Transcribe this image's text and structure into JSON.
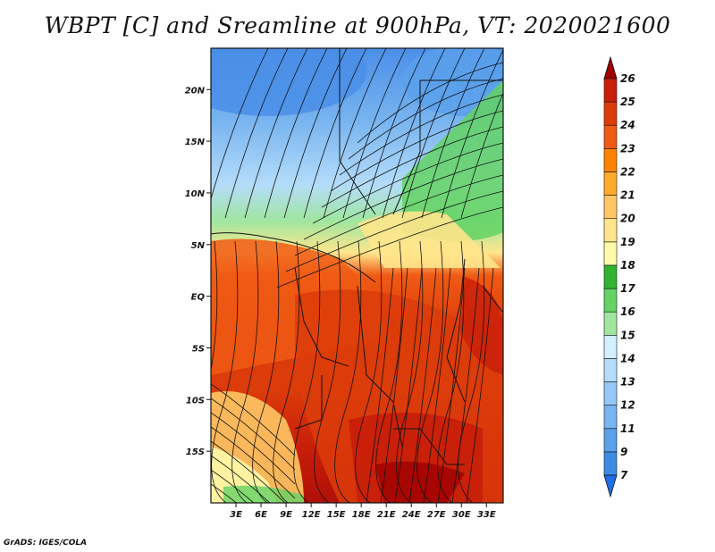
{
  "title": "WBPT [C] and Sreamline at 900hPa, VT: 2020021600",
  "credit": "GrADS: IGES/COLA",
  "map": {
    "lon_range": [
      0,
      35
    ],
    "lat_range": [
      -20,
      24
    ],
    "y_ticks": [
      {
        "label": "20N",
        "lat": 20
      },
      {
        "label": "15N",
        "lat": 15
      },
      {
        "label": "10N",
        "lat": 10
      },
      {
        "label": "5N",
        "lat": 5
      },
      {
        "label": "EQ",
        "lat": 0
      },
      {
        "label": "5S",
        "lat": -5
      },
      {
        "label": "10S",
        "lat": -10
      },
      {
        "label": "15S",
        "lat": -15
      }
    ],
    "x_ticks": [
      {
        "label": "3E",
        "lon": 3
      },
      {
        "label": "6E",
        "lon": 6
      },
      {
        "label": "9E",
        "lon": 9
      },
      {
        "label": "12E",
        "lon": 12
      },
      {
        "label": "15E",
        "lon": 15
      },
      {
        "label": "18E",
        "lon": 18
      },
      {
        "label": "21E",
        "lon": 21
      },
      {
        "label": "24E",
        "lon": 24
      },
      {
        "label": "27E",
        "lon": 27
      },
      {
        "label": "30E",
        "lon": 30
      },
      {
        "label": "33E",
        "lon": 33
      }
    ]
  },
  "colorbar": {
    "levels": [
      "7",
      "9",
      "11",
      "12",
      "13",
      "14",
      "15",
      "16",
      "17",
      "18",
      "19",
      "20",
      "21",
      "22",
      "23",
      "24",
      "25",
      "26"
    ],
    "colors": [
      "#1e6ee6",
      "#3c8ce6",
      "#5aa0eb",
      "#78b4f0",
      "#96c8f5",
      "#b4dcfa",
      "#d2f0ff",
      "#a0e6a0",
      "#64d264",
      "#32b432",
      "#fffaaa",
      "#ffe68c",
      "#ffc864",
      "#ffaa28",
      "#ff8200",
      "#f05a14",
      "#dc3c0a",
      "#c81e0a",
      "#a00000"
    ]
  }
}
